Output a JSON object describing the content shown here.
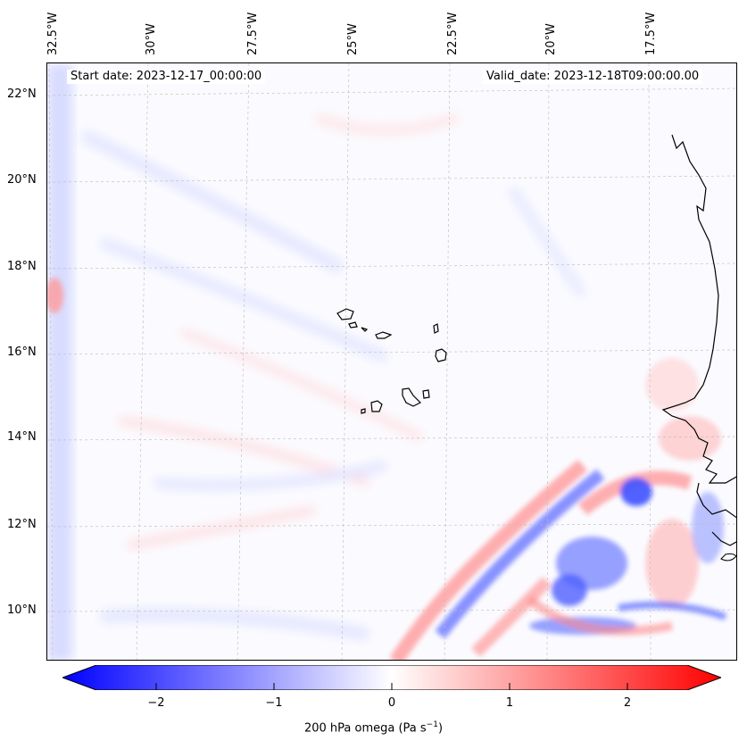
{
  "header": {
    "start_date": "Start date: 2023-12-17_00:00:00",
    "valid_date": "Valid_date: 2023-12-18T09:00:00.00"
  },
  "axes": {
    "lon_labels": [
      "32.5°W",
      "30°W",
      "27.5°W",
      "25°W",
      "22.5°W",
      "20°W",
      "17.5°W"
    ],
    "lat_labels": [
      "22°N",
      "20°N",
      "18°N",
      "16°N",
      "14°N",
      "12°N",
      "10°N"
    ]
  },
  "colorbar": {
    "ticks": [
      "−2",
      "−1",
      "0",
      "1",
      "2"
    ],
    "label_main": "200 hPa omega (Pa s",
    "label_exp": "−1",
    "label_end": ")",
    "min_color": "#0000ff",
    "mid_color": "#ffffff",
    "max_color": "#ff0000"
  },
  "colors": {
    "coast": "#000000",
    "grid": "#bbbbbb",
    "blue_field": "#4a5cff",
    "red_field": "#ff5a5a"
  }
}
